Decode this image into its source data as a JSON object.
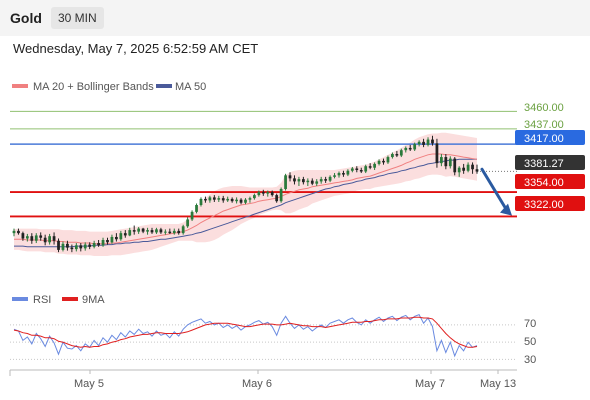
{
  "header": {
    "symbol": "Gold",
    "timeframe": "30 MIN"
  },
  "timestamp": "Wednesday, May 7, 2025 6:52:59 AM CET",
  "colors": {
    "bull": "#2a7a3b",
    "bear": "#222222",
    "ma20": "#f08080",
    "ma50": "#4a5a9a",
    "band_fill": "#f9d3d3",
    "green_level": "#90c070",
    "blue_level": "#4a7ad8",
    "red_level": "#e01010",
    "current": "#333333",
    "rsi": "#6a8ae0",
    "rsi_ma": "#e02020",
    "arrow": "#2a5aa0"
  },
  "chart_data": [
    {
      "type": "candlestick",
      "legend": [
        {
          "label": "MA 20 + Bollinger Bands",
          "color": "#f08080"
        },
        {
          "label": "MA 50",
          "color": "#4a5a9a"
        }
      ],
      "ylim": [
        3245,
        3475
      ],
      "levels": [
        {
          "value": 3460.0,
          "label": "3460.00",
          "style": "green"
        },
        {
          "value": 3437.0,
          "label": "3437.00",
          "style": "green"
        },
        {
          "value": 3417.0,
          "label": "3417.00",
          "style": "blue"
        },
        {
          "value": 3381.27,
          "label": "3381.27",
          "style": "current"
        },
        {
          "value": 3354.0,
          "label": "3354.00",
          "style": "red"
        },
        {
          "value": 3322.0,
          "label": "3322.00",
          "style": "red"
        }
      ],
      "forecast_arrow": {
        "from": 3384,
        "to": 3323
      },
      "candles": [
        [
          3300,
          3306,
          3296,
          3303
        ],
        [
          3303,
          3306,
          3298,
          3300
        ],
        [
          3300,
          3302,
          3290,
          3293
        ],
        [
          3293,
          3299,
          3289,
          3296
        ],
        [
          3296,
          3300,
          3286,
          3290
        ],
        [
          3290,
          3300,
          3287,
          3297
        ],
        [
          3297,
          3301,
          3290,
          3294
        ],
        [
          3294,
          3298,
          3284,
          3288
        ],
        [
          3288,
          3299,
          3285,
          3296
        ],
        [
          3296,
          3301,
          3285,
          3290
        ],
        [
          3290,
          3293,
          3275,
          3278
        ],
        [
          3278,
          3289,
          3276,
          3286
        ],
        [
          3286,
          3290,
          3277,
          3281
        ],
        [
          3281,
          3285,
          3275,
          3279
        ],
        [
          3279,
          3287,
          3276,
          3284
        ],
        [
          3284,
          3287,
          3276,
          3280
        ],
        [
          3280,
          3288,
          3277,
          3285
        ],
        [
          3285,
          3288,
          3279,
          3282
        ],
        [
          3282,
          3290,
          3280,
          3287
        ],
        [
          3287,
          3291,
          3282,
          3284
        ],
        [
          3284,
          3294,
          3282,
          3291
        ],
        [
          3291,
          3294,
          3285,
          3288
        ],
        [
          3288,
          3298,
          3286,
          3295
        ],
        [
          3295,
          3300,
          3289,
          3292
        ],
        [
          3292,
          3303,
          3290,
          3300
        ],
        [
          3300,
          3304,
          3294,
          3297
        ],
        [
          3297,
          3307,
          3296,
          3304
        ],
        [
          3304,
          3310,
          3298,
          3302
        ],
        [
          3302,
          3308,
          3299,
          3306
        ],
        [
          3306,
          3307,
          3300,
          3302
        ],
        [
          3302,
          3307,
          3298,
          3304
        ],
        [
          3304,
          3307,
          3299,
          3301
        ],
        [
          3301,
          3307,
          3299,
          3305
        ],
        [
          3305,
          3307,
          3299,
          3301
        ],
        [
          3301,
          3305,
          3298,
          3302
        ],
        [
          3302,
          3306,
          3299,
          3300
        ],
        [
          3300,
          3306,
          3298,
          3303
        ],
        [
          3303,
          3306,
          3298,
          3300
        ],
        [
          3300,
          3311,
          3298,
          3309
        ],
        [
          3309,
          3321,
          3307,
          3318
        ],
        [
          3318,
          3330,
          3316,
          3328
        ],
        [
          3328,
          3339,
          3326,
          3337
        ],
        [
          3337,
          3347,
          3335,
          3345
        ],
        [
          3345,
          3348,
          3340,
          3343
        ],
        [
          3343,
          3349,
          3340,
          3347
        ],
        [
          3347,
          3350,
          3341,
          3344
        ],
        [
          3344,
          3349,
          3341,
          3346
        ],
        [
          3346,
          3349,
          3340,
          3343
        ],
        [
          3343,
          3348,
          3341,
          3345
        ],
        [
          3345,
          3347,
          3340,
          3342
        ],
        [
          3342,
          3347,
          3339,
          3344
        ],
        [
          3344,
          3346,
          3338,
          3340
        ],
        [
          3340,
          3346,
          3338,
          3344
        ],
        [
          3344,
          3348,
          3340,
          3346
        ],
        [
          3346,
          3352,
          3344,
          3350
        ],
        [
          3350,
          3356,
          3348,
          3354
        ],
        [
          3354,
          3357,
          3349,
          3352
        ],
        [
          3352,
          3356,
          3348,
          3354
        ],
        [
          3354,
          3356,
          3348,
          3350
        ],
        [
          3350,
          3352,
          3340,
          3342
        ],
        [
          3342,
          3360,
          3340,
          3358
        ],
        [
          3358,
          3378,
          3356,
          3376
        ],
        [
          3376,
          3380,
          3368,
          3372
        ],
        [
          3372,
          3376,
          3364,
          3368
        ],
        [
          3368,
          3374,
          3362,
          3371
        ],
        [
          3371,
          3374,
          3364,
          3367
        ],
        [
          3367,
          3372,
          3362,
          3369
        ],
        [
          3369,
          3372,
          3363,
          3365
        ],
        [
          3365,
          3371,
          3362,
          3368
        ],
        [
          3368,
          3374,
          3365,
          3371
        ],
        [
          3371,
          3374,
          3366,
          3369
        ],
        [
          3369,
          3376,
          3367,
          3374
        ],
        [
          3374,
          3379,
          3372,
          3376
        ],
        [
          3376,
          3381,
          3373,
          3379
        ],
        [
          3379,
          3382,
          3374,
          3377
        ],
        [
          3377,
          3384,
          3375,
          3382
        ],
        [
          3382,
          3387,
          3380,
          3385
        ],
        [
          3385,
          3388,
          3380,
          3383
        ],
        [
          3383,
          3386,
          3379,
          3381
        ],
        [
          3381,
          3390,
          3379,
          3388
        ],
        [
          3388,
          3392,
          3384,
          3386
        ],
        [
          3386,
          3393,
          3383,
          3391
        ],
        [
          3391,
          3397,
          3389,
          3395
        ],
        [
          3395,
          3398,
          3390,
          3393
        ],
        [
          3393,
          3402,
          3391,
          3400
        ],
        [
          3400,
          3406,
          3398,
          3404
        ],
        [
          3404,
          3408,
          3400,
          3402
        ],
        [
          3402,
          3411,
          3400,
          3409
        ],
        [
          3409,
          3414,
          3406,
          3412
        ],
        [
          3412,
          3416,
          3408,
          3410
        ],
        [
          3410,
          3419,
          3408,
          3417
        ],
        [
          3417,
          3422,
          3414,
          3420
        ],
        [
          3420,
          3424,
          3413,
          3416
        ],
        [
          3416,
          3426,
          3414,
          3423
        ],
        [
          3423,
          3428,
          3415,
          3418
        ],
        [
          3418,
          3424,
          3386,
          3392
        ],
        [
          3392,
          3404,
          3388,
          3400
        ],
        [
          3400,
          3404,
          3384,
          3388
        ],
        [
          3388,
          3401,
          3385,
          3398
        ],
        [
          3398,
          3400,
          3376,
          3380
        ],
        [
          3380,
          3388,
          3374,
          3386
        ],
        [
          3386,
          3391,
          3378,
          3382
        ],
        [
          3382,
          3393,
          3380,
          3390
        ],
        [
          3390,
          3393,
          3378,
          3384
        ],
        [
          3384,
          3390,
          3378,
          3381
        ]
      ],
      "ma20": [
        3292,
        3292,
        3292,
        3291,
        3291,
        3291,
        3291,
        3290,
        3290,
        3290,
        3289,
        3289,
        3288,
        3288,
        3288,
        3287,
        3287,
        3287,
        3286,
        3286,
        3286,
        3286,
        3287,
        3287,
        3288,
        3289,
        3290,
        3291,
        3292,
        3293,
        3294,
        3295,
        3296,
        3297,
        3298,
        3299,
        3300,
        3301,
        3302,
        3304,
        3307,
        3310,
        3314,
        3317,
        3320,
        3323,
        3326,
        3329,
        3331,
        3333,
        3335,
        3337,
        3338,
        3339,
        3340,
        3342,
        3343,
        3344,
        3345,
        3346,
        3348,
        3351,
        3353,
        3355,
        3357,
        3358,
        3359,
        3361,
        3362,
        3363,
        3364,
        3365,
        3366,
        3367,
        3368,
        3369,
        3370,
        3372,
        3373,
        3374,
        3375,
        3377,
        3379,
        3381,
        3383,
        3385,
        3387,
        3389,
        3392,
        3394,
        3397,
        3399,
        3401,
        3403,
        3404,
        3404,
        3404,
        3403,
        3403,
        3402,
        3401,
        3400,
        3399,
        3398,
        3397
      ],
      "band_upper": [
        3305,
        3306,
        3306,
        3306,
        3306,
        3306,
        3305,
        3305,
        3305,
        3305,
        3305,
        3304,
        3304,
        3304,
        3303,
        3303,
        3303,
        3302,
        3302,
        3302,
        3302,
        3302,
        3303,
        3304,
        3305,
        3306,
        3307,
        3308,
        3309,
        3310,
        3311,
        3312,
        3312,
        3312,
        3312,
        3312,
        3312,
        3312,
        3314,
        3318,
        3324,
        3332,
        3340,
        3346,
        3351,
        3355,
        3358,
        3360,
        3361,
        3362,
        3362,
        3362,
        3361,
        3360,
        3360,
        3360,
        3360,
        3360,
        3360,
        3361,
        3366,
        3376,
        3380,
        3382,
        3383,
        3383,
        3383,
        3383,
        3383,
        3383,
        3383,
        3383,
        3383,
        3384,
        3385,
        3386,
        3387,
        3388,
        3389,
        3390,
        3392,
        3394,
        3397,
        3400,
        3403,
        3406,
        3409,
        3412,
        3416,
        3419,
        3423,
        3426,
        3428,
        3430,
        3431,
        3431,
        3432,
        3432,
        3431,
        3430,
        3429,
        3428,
        3427,
        3426,
        3425
      ],
      "band_lower": [
        3278,
        3278,
        3277,
        3276,
        3276,
        3276,
        3276,
        3275,
        3275,
        3275,
        3273,
        3273,
        3272,
        3272,
        3272,
        3271,
        3271,
        3271,
        3270,
        3270,
        3270,
        3270,
        3271,
        3271,
        3271,
        3272,
        3273,
        3274,
        3275,
        3276,
        3277,
        3278,
        3280,
        3282,
        3284,
        3286,
        3288,
        3290,
        3290,
        3290,
        3290,
        3288,
        3288,
        3288,
        3289,
        3291,
        3294,
        3298,
        3301,
        3304,
        3308,
        3312,
        3315,
        3318,
        3320,
        3324,
        3326,
        3328,
        3330,
        3331,
        3330,
        3326,
        3326,
        3328,
        3331,
        3333,
        3335,
        3339,
        3341,
        3343,
        3345,
        3347,
        3349,
        3350,
        3351,
        3352,
        3353,
        3356,
        3357,
        3358,
        3358,
        3360,
        3361,
        3362,
        3363,
        3364,
        3365,
        3366,
        3368,
        3369,
        3371,
        3372,
        3374,
        3376,
        3377,
        3377,
        3376,
        3374,
        3375,
        3374,
        3373,
        3372,
        3371,
        3370,
        3369
      ],
      "ma50": [
        3283,
        3283,
        3283,
        3282,
        3282,
        3282,
        3282,
        3282,
        3282,
        3282,
        3282,
        3282,
        3282,
        3282,
        3283,
        3283,
        3283,
        3283,
        3284,
        3284,
        3284,
        3285,
        3285,
        3286,
        3286,
        3287,
        3287,
        3288,
        3288,
        3289,
        3289,
        3290,
        3291,
        3292,
        3292,
        3293,
        3294,
        3295,
        3296,
        3297,
        3298,
        3300,
        3301,
        3303,
        3305,
        3307,
        3309,
        3311,
        3313,
        3315,
        3317,
        3319,
        3321,
        3323,
        3325,
        3327,
        3329,
        3331,
        3333,
        3335,
        3337,
        3340,
        3342,
        3344,
        3346,
        3348,
        3350,
        3352,
        3354,
        3356,
        3358,
        3359,
        3361,
        3362,
        3364,
        3365,
        3366,
        3368,
        3369,
        3371,
        3372,
        3373,
        3375,
        3376,
        3378,
        3379,
        3380,
        3382,
        3383,
        3385,
        3386,
        3388,
        3389,
        3391,
        3392,
        3393,
        3394,
        3395,
        3396,
        3396,
        3397,
        3397,
        3397,
        3397,
        3397
      ]
    },
    {
      "type": "line",
      "legend": [
        {
          "label": "RSI",
          "color": "#6a8ae0"
        },
        {
          "label": "9MA",
          "color": "#e02020"
        }
      ],
      "ylim": [
        20,
        85
      ],
      "y_ticks": [
        "70",
        "50",
        "30"
      ],
      "y_tick_values": [
        70,
        50,
        30
      ],
      "rsi": [
        65,
        63,
        52,
        56,
        48,
        60,
        54,
        45,
        57,
        49,
        36,
        50,
        43,
        42,
        46,
        40,
        48,
        44,
        52,
        46,
        55,
        50,
        58,
        53,
        61,
        56,
        63,
        59,
        65,
        60,
        62,
        57,
        63,
        58,
        60,
        55,
        62,
        57,
        65,
        70,
        73,
        75,
        77,
        72,
        74,
        70,
        72,
        67,
        70,
        66,
        69,
        64,
        68,
        70,
        73,
        75,
        71,
        73,
        68,
        58,
        72,
        80,
        72,
        66,
        70,
        65,
        68,
        63,
        67,
        70,
        67,
        72,
        74,
        76,
        72,
        76,
        78,
        73,
        70,
        76,
        72,
        76,
        79,
        74,
        78,
        80,
        75,
        79,
        81,
        76,
        80,
        82,
        72,
        78,
        68,
        40,
        52,
        38,
        50,
        34,
        46,
        40,
        50,
        44,
        46
      ],
      "rsi_ma": [
        64,
        63,
        61,
        60,
        58,
        58,
        57,
        55,
        55,
        54,
        51,
        50,
        48,
        46,
        45,
        44,
        45,
        44,
        45,
        45,
        47,
        48,
        50,
        51,
        53,
        54,
        56,
        57,
        58,
        59,
        59,
        60,
        61,
        61,
        60,
        60,
        60,
        60,
        61,
        62,
        64,
        66,
        68,
        70,
        71,
        72,
        72,
        72,
        72,
        71,
        70,
        69,
        68,
        68,
        69,
        70,
        71,
        71,
        71,
        70,
        70,
        71,
        72,
        71,
        70,
        69,
        69,
        68,
        68,
        68,
        67,
        68,
        69,
        70,
        71,
        72,
        73,
        73,
        73,
        74,
        74,
        75,
        76,
        76,
        77,
        77,
        77,
        78,
        78,
        78,
        79,
        79,
        78,
        78,
        77,
        72,
        66,
        60,
        55,
        51,
        48,
        46,
        44,
        44,
        45
      ]
    }
  ],
  "x_axis": {
    "labels": [
      "May 5",
      "May 6",
      "May 7",
      "May 13"
    ]
  }
}
